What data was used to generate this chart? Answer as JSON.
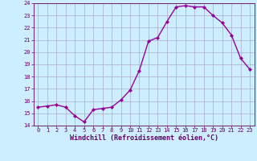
{
  "x": [
    0,
    1,
    2,
    3,
    4,
    5,
    6,
    7,
    8,
    9,
    10,
    11,
    12,
    13,
    14,
    15,
    16,
    17,
    18,
    19,
    20,
    21,
    22,
    23
  ],
  "y": [
    15.5,
    15.6,
    15.7,
    15.5,
    14.8,
    14.3,
    15.3,
    15.4,
    15.5,
    16.1,
    16.9,
    18.5,
    20.9,
    21.2,
    22.5,
    23.7,
    23.8,
    23.7,
    23.7,
    23.0,
    22.4,
    21.4,
    19.5,
    18.6
  ],
  "line_color": "#990099",
  "marker": "D",
  "marker_size": 2,
  "bg_color": "#cceeff",
  "grid_color": "#aaaacc",
  "xlabel": "Windchill (Refroidissement éolien,°C)",
  "xlabel_color": "#660066",
  "tick_color": "#660066",
  "ylim": [
    14,
    24
  ],
  "xlim_min": -0.5,
  "xlim_max": 23.5,
  "yticks": [
    14,
    15,
    16,
    17,
    18,
    19,
    20,
    21,
    22,
    23,
    24
  ],
  "xticks": [
    0,
    1,
    2,
    3,
    4,
    5,
    6,
    7,
    8,
    9,
    10,
    11,
    12,
    13,
    14,
    15,
    16,
    17,
    18,
    19,
    20,
    21,
    22,
    23
  ],
  "spine_color": "#660066",
  "linewidth": 1.0,
  "tick_fontsize": 5.0,
  "xlabel_fontsize": 6.0
}
